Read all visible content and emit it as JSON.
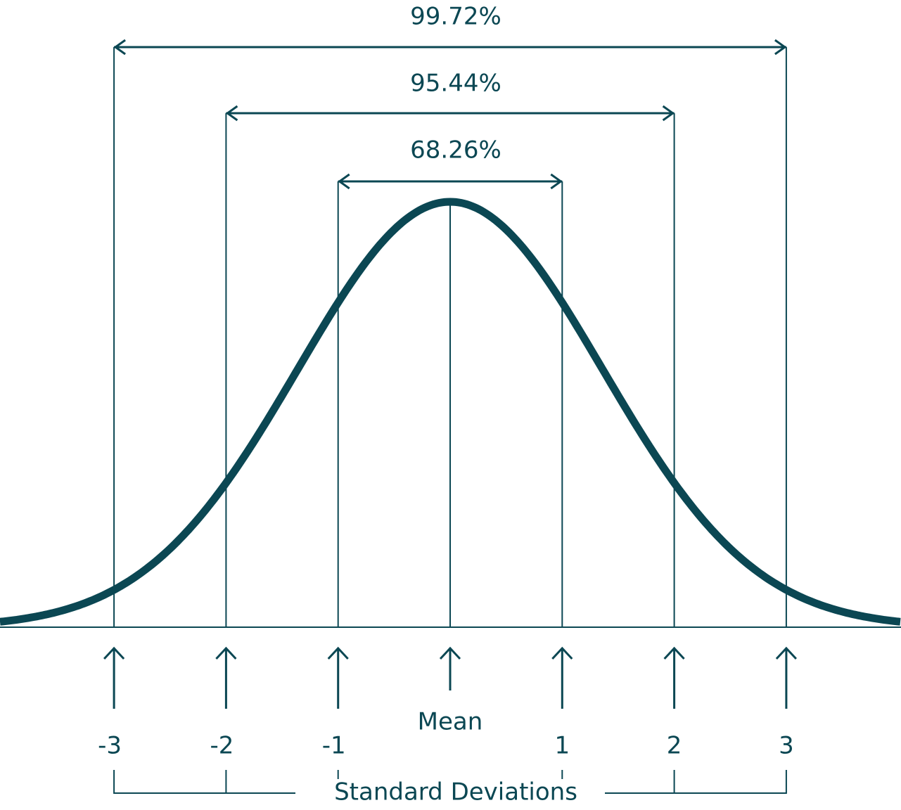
{
  "ranges": [
    {
      "label": "99.72%"
    },
    {
      "label": "95.44%"
    },
    {
      "label": "68.26%"
    }
  ],
  "axis": {
    "ticks": [
      "-3",
      "-2",
      "-1",
      "1",
      "2",
      "3"
    ],
    "mean": "Mean",
    "caption": "Standard Deviations"
  }
}
